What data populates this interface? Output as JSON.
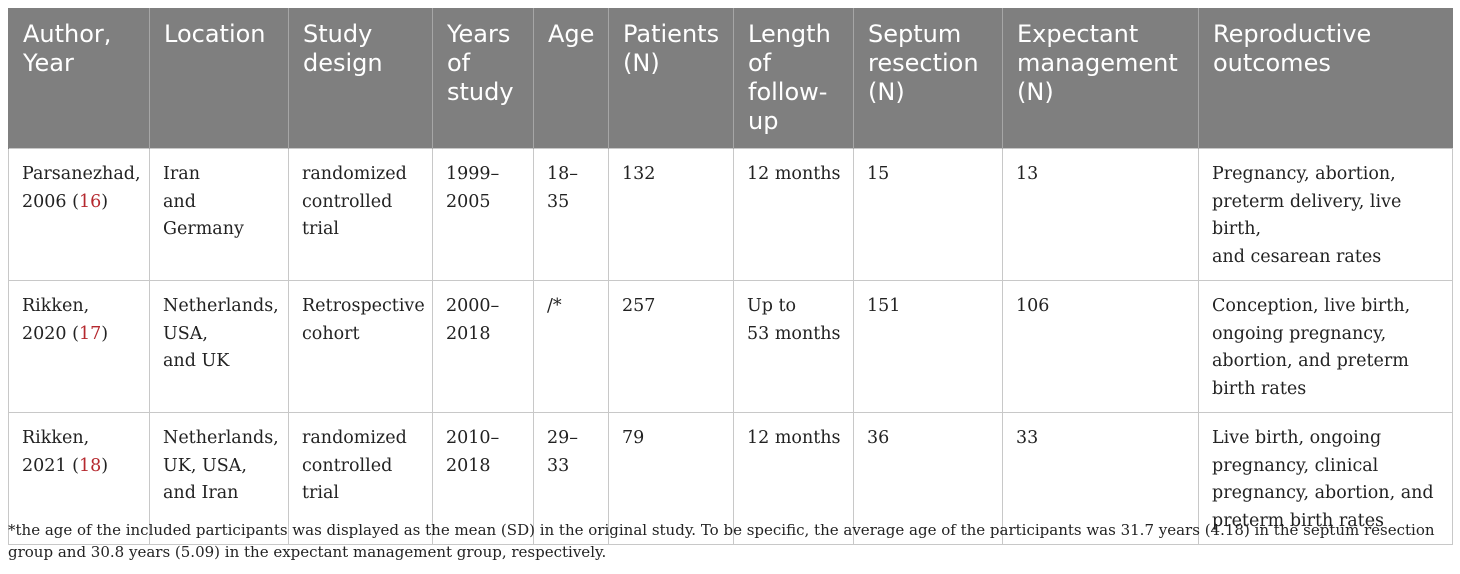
{
  "table": {
    "headers": [
      "Author,\nYear",
      "Location",
      "Study\ndesign",
      "Years\nof\nstudy",
      "Age",
      "Patients\n(N)",
      "Length\nof\nfollow-\nup",
      "Septum\nresection\n(N)",
      "Expectant\nmanagement\n(N)",
      "Reproductive\noutcomes"
    ],
    "rows": [
      {
        "author": "Parsanezhad,\n2006 (",
        "ref": "16",
        "ref_close": ")",
        "location": "Iran\nand\nGermany",
        "design": "randomized\ncontrolled\ntrial",
        "years": "1999–\n2005",
        "age": "18–\n35",
        "patients": "132",
        "followup": "12 months",
        "septum": "15",
        "expectant": "13",
        "outcomes": "Pregnancy, abortion,\npreterm delivery, live birth,\nand cesarean rates"
      },
      {
        "author": "Rikken,\n2020 (",
        "ref": "17",
        "ref_close": ")",
        "location": "Netherlands,\nUSA,\nand UK",
        "design": "Retrospective\ncohort",
        "years": "2000–\n2018",
        "age": "/*",
        "patients": "257",
        "followup": "Up to\n53 months",
        "septum": "151",
        "expectant": "106",
        "outcomes": "Conception, live birth,\nongoing pregnancy,\nabortion, and preterm\nbirth rates"
      },
      {
        "author": "Rikken,\n2021 (",
        "ref": "18",
        "ref_close": ")",
        "location": "Netherlands,\nUK, USA,\nand Iran",
        "design": "randomized\ncontrolled\ntrial",
        "years": "2010–\n2018",
        "age": "29–\n33",
        "patients": "79",
        "followup": "12 months",
        "septum": "36",
        "expectant": "33",
        "outcomes": "Live birth, ongoing\npregnancy, clinical\npregnancy, abortion, and\npreterm birth rates"
      }
    ]
  },
  "footnote": "*the age of the included participants was displayed as the mean (SD) in the original study. To be specific, the average age of the participants was 31.7 years (4.18) in the septum resection group and 30.8 years (5.09) in the expectant management group, respectively.",
  "colors": {
    "header_bg": "#7f7f7f",
    "header_text": "#ffffff",
    "reference_link": "#b5282e",
    "border": "#c8c8c8"
  }
}
